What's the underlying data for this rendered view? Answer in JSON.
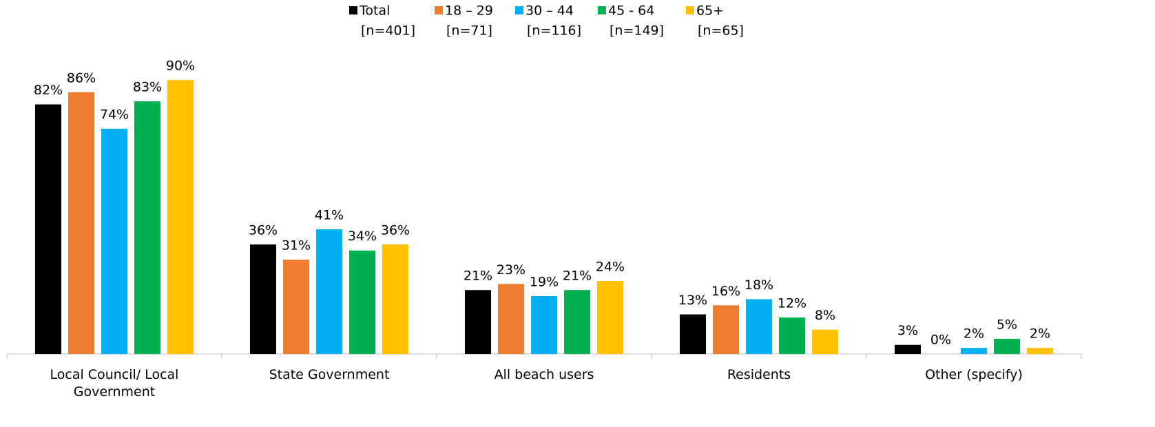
{
  "chart_data": {
    "type": "bar",
    "categories": [
      "Local Council/ Local Government",
      "State Government",
      "All beach users",
      "Residents",
      "Other (specify)"
    ],
    "series": [
      {
        "name": "Total",
        "sample_size": "[n=401]",
        "color": "#000000",
        "values": [
          82,
          36,
          21,
          13,
          3
        ],
        "value_labels": [
          "82%",
          "36%",
          "21%",
          "13%",
          "3%"
        ]
      },
      {
        "name": "18 – 29",
        "sample_size": "[n=71]",
        "color": "#ED7D31",
        "values": [
          86,
          31,
          23,
          16,
          0
        ],
        "value_labels": [
          "86%",
          "31%",
          "23%",
          "16%",
          "0%"
        ]
      },
      {
        "name": "30 – 44",
        "sample_size": "[n=116]",
        "color": "#00B0F0",
        "values": [
          74,
          41,
          19,
          18,
          2
        ],
        "value_labels": [
          "74%",
          "41%",
          "19%",
          "18%",
          "2%"
        ]
      },
      {
        "name": "45 - 64",
        "sample_size": "[n=149]",
        "color": "#00B050",
        "values": [
          83,
          34,
          21,
          12,
          5
        ],
        "value_labels": [
          "83%",
          "34%",
          "21%",
          "12%",
          "5%"
        ]
      },
      {
        "name": "65+",
        "sample_size": "[n=65]",
        "color": "#FFC000",
        "values": [
          90,
          36,
          24,
          8,
          2
        ],
        "value_labels": [
          "90%",
          "36%",
          "24%",
          "8%",
          "2%"
        ]
      }
    ],
    "legend": "top"
  }
}
